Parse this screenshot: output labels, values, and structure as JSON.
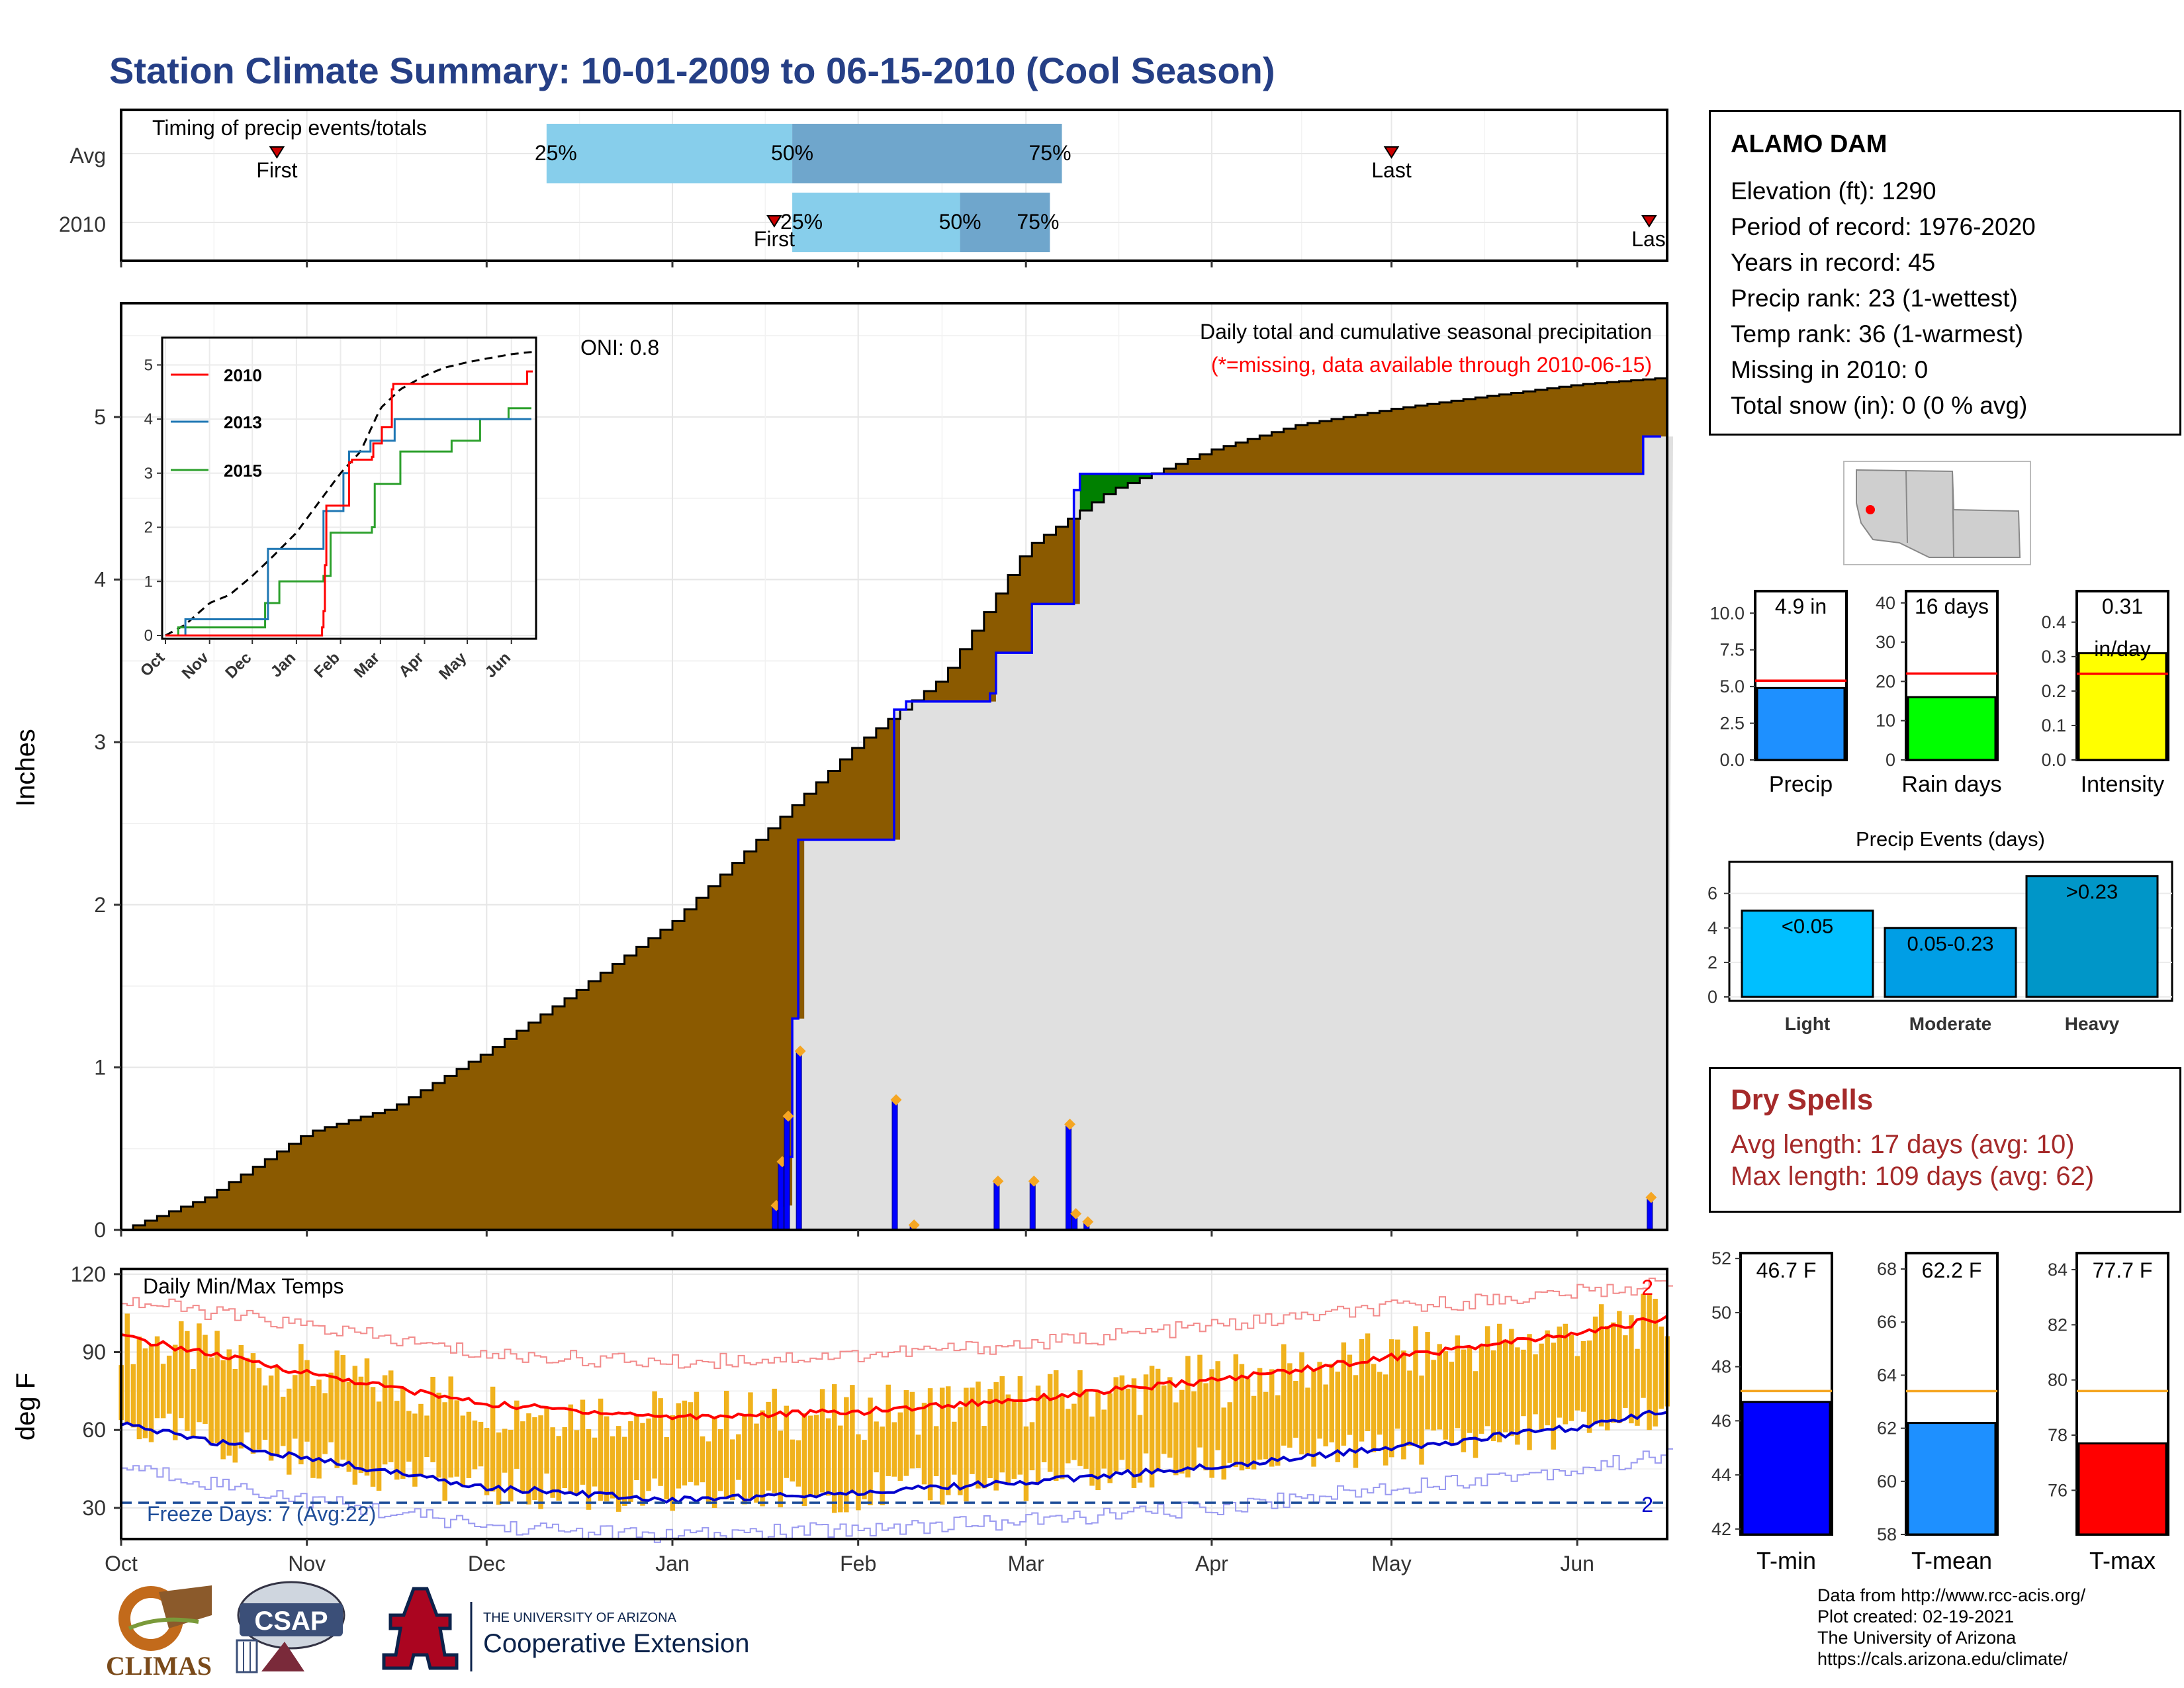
{
  "title": "Station Climate Summary: 10-01-2009 to 06-15-2010 (Cool Season)",
  "colors": {
    "title": "#253f86",
    "cumFill": "#8b5a00",
    "bars": "#0000ff",
    "green": "#008000",
    "red": "#ff0000",
    "tbar": "#f0b21d"
  },
  "timing": {
    "label": "Timing of precip events/totals",
    "rows": [
      {
        "name": "Avg",
        "first_date": "2009-10-27",
        "p25_date": "2009-12-11",
        "p50_date": "2010-01-21",
        "p75_date": "2010-03-07",
        "last_date": "2010-05-01",
        "p25_label": "25%",
        "p50_label": "50%",
        "p75_label": "75%",
        "first_label": "First",
        "last_label": "Last"
      },
      {
        "name": "2010",
        "first_date": "2010-01-18",
        "p25_date": "2010-01-21",
        "p50_date": "2010-02-18",
        "p75_date": "2010-03-05",
        "last_date": "2010-06-13",
        "p25_label": "25%",
        "p50_label": "50%",
        "p75_label": "75%",
        "first_label": "First",
        "last_label": "Las"
      }
    ]
  },
  "precip_panel": {
    "ylabel": "Inches",
    "yticks": [
      "0",
      "1",
      "2",
      "3",
      "4",
      "5"
    ],
    "oni": "ONI: 0.8",
    "caption1": "Daily total and cumulative seasonal precipitation",
    "caption2": "(*=missing, data available through 2010-06-15)",
    "month_labels": [
      "Oct",
      "Nov",
      "Dec",
      "Jan",
      "Feb",
      "Mar",
      "Apr",
      "May",
      "Jun"
    ],
    "cumulative_avg": [
      [
        "2009-10-01",
        0.0
      ],
      [
        "2009-10-15",
        0.2
      ],
      [
        "2009-11-01",
        0.6
      ],
      [
        "2009-11-15",
        0.75
      ],
      [
        "2009-12-01",
        1.1
      ],
      [
        "2009-12-15",
        1.45
      ],
      [
        "2010-01-01",
        1.9
      ],
      [
        "2010-01-15",
        2.4
      ],
      [
        "2010-02-01",
        3.0
      ],
      [
        "2010-02-15",
        3.4
      ],
      [
        "2010-03-01",
        4.2
      ],
      [
        "2010-03-15",
        4.55
      ],
      [
        "2010-04-01",
        4.8
      ],
      [
        "2010-04-15",
        4.95
      ],
      [
        "2010-05-01",
        5.05
      ],
      [
        "2010-05-15",
        5.12
      ],
      [
        "2010-06-01",
        5.2
      ],
      [
        "2010-06-15",
        5.24
      ]
    ],
    "cumulative_2010": [
      [
        "2009-10-01",
        0.0
      ],
      [
        "2010-01-18",
        0.0
      ],
      [
        "2010-01-19",
        0.15
      ],
      [
        "2010-01-20",
        0.45
      ],
      [
        "2010-01-21",
        1.3
      ],
      [
        "2010-01-22",
        2.4
      ],
      [
        "2010-02-06",
        2.4
      ],
      [
        "2010-02-07",
        3.2
      ],
      [
        "2010-02-09",
        3.25
      ],
      [
        "2010-02-23",
        3.3
      ],
      [
        "2010-02-24",
        3.55
      ],
      [
        "2010-03-01",
        3.55
      ],
      [
        "2010-03-02",
        3.85
      ],
      [
        "2010-03-08",
        3.85
      ],
      [
        "2010-03-09",
        4.55
      ],
      [
        "2010-03-10",
        4.65
      ],
      [
        "2010-06-10",
        4.65
      ],
      [
        "2010-06-12",
        4.88
      ],
      [
        "2010-06-15",
        4.88
      ]
    ],
    "daily_bars": [
      [
        "2010-01-18",
        0.15
      ],
      [
        "2010-01-19",
        0.42
      ],
      [
        "2010-01-20",
        0.7
      ],
      [
        "2010-01-22",
        1.1
      ],
      [
        "2010-02-07",
        0.8
      ],
      [
        "2010-02-10",
        0.03
      ],
      [
        "2010-02-24",
        0.3
      ],
      [
        "2010-03-02",
        0.3
      ],
      [
        "2010-03-08",
        0.65
      ],
      [
        "2010-03-09",
        0.1
      ],
      [
        "2010-03-11",
        0.05
      ],
      [
        "2010-06-13",
        0.2
      ]
    ]
  },
  "inset": {
    "legend": [
      "2010",
      "2013",
      "2015"
    ],
    "xticks": [
      "Oct",
      "Nov",
      "Dec",
      "Jan",
      "Feb",
      "Mar",
      "Apr",
      "May",
      "Jun"
    ],
    "yticks": [
      "0",
      "1",
      "2",
      "3",
      "4",
      "5"
    ],
    "series_2013": [
      [
        "2009-10-01",
        0.0
      ],
      [
        "2009-10-15",
        0.3
      ],
      [
        "2009-12-10",
        0.3
      ],
      [
        "2009-12-12",
        1.6
      ],
      [
        "2010-01-15",
        1.6
      ],
      [
        "2010-01-20",
        2.3
      ],
      [
        "2010-02-03",
        3.0
      ],
      [
        "2010-02-07",
        3.4
      ],
      [
        "2010-02-22",
        3.6
      ],
      [
        "2010-03-11",
        4.0
      ],
      [
        "2010-06-15",
        4.0
      ]
    ],
    "series_2015": [
      [
        "2009-10-01",
        0.0
      ],
      [
        "2009-10-10",
        0.15
      ],
      [
        "2009-12-05",
        0.15
      ],
      [
        "2009-12-10",
        0.6
      ],
      [
        "2009-12-20",
        1.0
      ],
      [
        "2010-01-20",
        1.1
      ],
      [
        "2010-01-25",
        1.9
      ],
      [
        "2010-02-23",
        2.0
      ],
      [
        "2010-02-25",
        2.8
      ],
      [
        "2010-03-15",
        3.4
      ],
      [
        "2010-04-20",
        3.6
      ],
      [
        "2010-05-10",
        4.0
      ],
      [
        "2010-05-30",
        4.2
      ],
      [
        "2010-06-15",
        4.2
      ]
    ]
  },
  "temp_panel": {
    "ylabel": "deg F",
    "yticks": [
      "30",
      "60",
      "90",
      "120"
    ],
    "title": "Daily Min/Max Temps",
    "freeze_label": "Freeze Days: 7 (Avg:22)",
    "freeze_line": 32,
    "annot_top": "2",
    "annot_bottom": "2",
    "avg_max": [
      [
        "2009-10-01",
        96
      ],
      [
        "2009-11-01",
        82
      ],
      [
        "2009-12-01",
        70
      ],
      [
        "2010-01-01",
        65
      ],
      [
        "2010-02-01",
        67
      ],
      [
        "2010-03-01",
        72
      ],
      [
        "2010-04-01",
        79
      ],
      [
        "2010-05-01",
        88
      ],
      [
        "2010-06-01",
        97
      ],
      [
        "2010-06-15",
        103
      ]
    ],
    "avg_min": [
      [
        "2009-10-01",
        62
      ],
      [
        "2009-11-01",
        49
      ],
      [
        "2009-12-01",
        38
      ],
      [
        "2010-01-01",
        33
      ],
      [
        "2010-02-01",
        36
      ],
      [
        "2010-03-01",
        40
      ],
      [
        "2010-04-01",
        46
      ],
      [
        "2010-05-01",
        53
      ],
      [
        "2010-06-01",
        61
      ],
      [
        "2010-06-15",
        67
      ]
    ],
    "rec_max": [
      [
        "2009-10-01",
        110
      ],
      [
        "2009-11-01",
        100
      ],
      [
        "2009-12-01",
        89
      ],
      [
        "2010-01-01",
        86
      ],
      [
        "2010-02-01",
        89
      ],
      [
        "2010-03-01",
        93
      ],
      [
        "2010-04-01",
        100
      ],
      [
        "2010-05-01",
        107
      ],
      [
        "2010-06-01",
        113
      ],
      [
        "2010-06-15",
        116
      ]
    ],
    "rec_min": [
      [
        "2009-10-01",
        46
      ],
      [
        "2009-11-01",
        33
      ],
      [
        "2009-12-01",
        23
      ],
      [
        "2010-01-01",
        19
      ],
      [
        "2010-02-01",
        22
      ],
      [
        "2010-03-01",
        25
      ],
      [
        "2010-04-01",
        30
      ],
      [
        "2010-05-01",
        38
      ],
      [
        "2010-06-01",
        45
      ],
      [
        "2010-06-15",
        50
      ]
    ]
  },
  "info": {
    "station": "ALAMO DAM",
    "lines": [
      "Elevation (ft): 1290",
      "Period of record: 1976-2020",
      "Years in record: 45",
      "Precip rank: 23 (1-wettest)",
      "Temp rank: 36 (1-warmest)",
      "Missing in 2010: 0",
      "Total snow (in): 0 (0 % avg)"
    ]
  },
  "summary_bars": [
    {
      "name": "Precip",
      "value": 4.9,
      "avg": 5.4,
      "ymax": 11.5,
      "ticks": [
        "0.0",
        "2.5",
        "5.0",
        "7.5",
        "10.0"
      ],
      "tick_values": [
        0,
        2.5,
        5,
        7.5,
        10
      ],
      "label1": "4.9 in",
      "label2": "",
      "color": "#1e90ff"
    },
    {
      "name": "Rain days",
      "value": 16,
      "avg": 22,
      "ymax": 43,
      "ticks": [
        "0",
        "10",
        "20",
        "30",
        "40"
      ],
      "tick_values": [
        0,
        10,
        20,
        30,
        40
      ],
      "label1": "16 days",
      "label2": "",
      "color": "#00ff00"
    },
    {
      "name": "Intensity",
      "value": 0.31,
      "avg": 0.25,
      "ymax": 0.49,
      "ticks": [
        "0.0",
        "0.1",
        "0.2",
        "0.3",
        "0.4"
      ],
      "tick_values": [
        0,
        0.1,
        0.2,
        0.3,
        0.4
      ],
      "label1": "0.31",
      "label2": "in/day",
      "color": "#ffff00"
    }
  ],
  "events": {
    "title": "Precip Events (days)",
    "ticks": [
      "0",
      "2",
      "4",
      "6"
    ],
    "bars": [
      {
        "name": "Light",
        "value": 5,
        "label": "<0.05",
        "color": "#00bfff"
      },
      {
        "name": "Moderate",
        "value": 4,
        "label": "0.05-0.23",
        "color": "#009ee5"
      },
      {
        "name": "Heavy",
        "value": 7,
        "label": ">0.23",
        "color": "#0096c8"
      }
    ]
  },
  "dry_spells": {
    "title": "Dry Spells",
    "avg": "Avg length: 17 days (avg: 10)",
    "max": "Max length: 109 days (avg: 62)"
  },
  "temp_bars": [
    {
      "name": "T-min",
      "value": 46.7,
      "avg": 47.1,
      "ymin": 41.8,
      "ymax": 52.2,
      "ticks": [
        "42",
        "44",
        "46",
        "48",
        "50",
        "52"
      ],
      "tick_values": [
        42,
        44,
        46,
        48,
        50,
        52
      ],
      "label": "46.7 F",
      "color": "#0000ff"
    },
    {
      "name": "T-mean",
      "value": 62.2,
      "avg": 63.4,
      "ymin": 58,
      "ymax": 68.6,
      "ticks": [
        "58",
        "60",
        "62",
        "64",
        "66",
        "68"
      ],
      "tick_values": [
        58,
        60,
        62,
        64,
        66,
        68
      ],
      "label": "62.2 F",
      "color": "#1e90ff"
    },
    {
      "name": "T-max",
      "value": 77.7,
      "avg": 79.6,
      "ymin": 74.4,
      "ymax": 84.6,
      "ticks": [
        "76",
        "78",
        "80",
        "82",
        "84"
      ],
      "tick_values": [
        76,
        78,
        80,
        82,
        84
      ],
      "label": "77.7 F",
      "color": "#ff0000"
    }
  ],
  "logos": {
    "climas": "CLIMAS",
    "csap": "CSAP",
    "ua_top": "THE UNIVERSITY OF ARIZONA",
    "ua_bottom": "Cooperative Extension"
  },
  "credits": [
    "Data from http://www.rcc-acis.org/",
    "Plot created: 02-19-2021",
    "The University of Arizona",
    "https://cals.arizona.edu/climate/"
  ]
}
